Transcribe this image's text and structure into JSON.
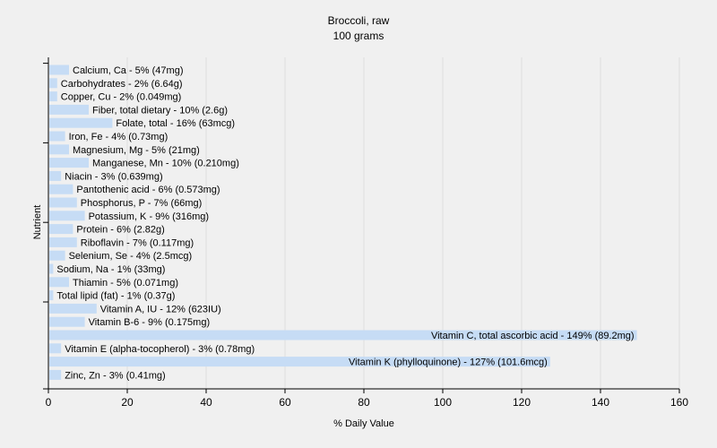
{
  "chart_data": {
    "type": "bar",
    "orientation": "horizontal",
    "title": "Broccoli, raw",
    "subtitle": "100 grams",
    "xlabel": "% Daily Value",
    "ylabel": "Nutrient",
    "xlim": [
      0,
      160
    ],
    "xticks": [
      0,
      20,
      40,
      60,
      80,
      100,
      120,
      140,
      160
    ],
    "grid": true,
    "bar_color": "#c6dcf5",
    "categories": [
      "Calcium, Ca - 5% (47mg)",
      "Carbohydrates - 2% (6.64g)",
      "Copper, Cu - 2% (0.049mg)",
      "Fiber, total dietary - 10% (2.6g)",
      "Folate, total - 16% (63mcg)",
      "Iron, Fe - 4% (0.73mg)",
      "Magnesium, Mg - 5% (21mg)",
      "Manganese, Mn - 10% (0.210mg)",
      "Niacin - 3% (0.639mg)",
      "Pantothenic acid - 6% (0.573mg)",
      "Phosphorus, P - 7% (66mg)",
      "Potassium, K - 9% (316mg)",
      "Protein - 6% (2.82g)",
      "Riboflavin - 7% (0.117mg)",
      "Selenium, Se - 4% (2.5mcg)",
      "Sodium, Na - 1% (33mg)",
      "Thiamin - 5% (0.071mg)",
      "Total lipid (fat) - 1% (0.37g)",
      "Vitamin A, IU - 12% (623IU)",
      "Vitamin B-6 - 9% (0.175mg)",
      "Vitamin C, total ascorbic acid - 149% (89.2mg)",
      "Vitamin E (alpha-tocopherol) - 3% (0.78mg)",
      "Vitamin K (phylloquinone) - 127% (101.6mcg)",
      "Zinc, Zn - 3% (0.41mg)"
    ],
    "values": [
      5,
      2,
      2,
      10,
      16,
      4,
      5,
      10,
      3,
      6,
      7,
      9,
      6,
      7,
      4,
      1,
      5,
      1,
      12,
      9,
      149,
      3,
      127,
      3
    ]
  }
}
